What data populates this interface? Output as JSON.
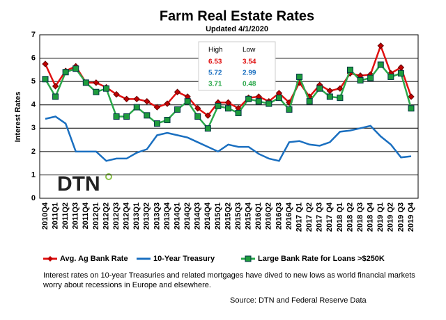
{
  "chart_data": {
    "type": "line",
    "title": "Farm Real Estate Rates",
    "subtitle": "Updated 4/1/2020",
    "y_label": "Interest Rates",
    "logo": "DTN",
    "categories": [
      "2010Q4",
      "2011Q1",
      "2011Q2",
      "2011Q3",
      "2011Q4",
      "2012Q1",
      "2012Q2",
      "2012Q3",
      "2012Q4",
      "2013Q1",
      "2013Q2",
      "2013Q3",
      "2013Q4",
      "2014Q1",
      "2014Q2",
      "2014Q3",
      "2014Q4",
      "2015Q1",
      "2015Q2",
      "2015Q3",
      "2015Q4",
      "2016Q1",
      "2016Q2",
      "2016Q3",
      "2016Q4",
      "2017 Q1",
      "2017 Q2",
      "2017 Q3",
      "2017 Q4",
      "2018 Q1",
      "2018 Q2",
      "2018 Q3",
      "2018 Q4",
      "2019 Q1",
      "2019 Q2",
      "2019 Q3",
      "2019 Q4"
    ],
    "series": [
      {
        "name": "Avg. Ag Bank Rate",
        "color": "#e01010",
        "marker": "diamond",
        "values": [
          5.75,
          4.8,
          5.45,
          5.65,
          4.95,
          4.95,
          4.75,
          4.45,
          4.25,
          4.25,
          4.15,
          3.9,
          4.05,
          4.55,
          4.35,
          3.85,
          3.54,
          4.1,
          4.1,
          3.85,
          4.3,
          4.35,
          4.15,
          4.5,
          4.1,
          4.95,
          4.35,
          4.85,
          4.6,
          4.7,
          5.35,
          5.25,
          5.3,
          6.53,
          5.35,
          5.6,
          4.35
        ]
      },
      {
        "name": "10-Year Treasury",
        "color": "#1a6fc0",
        "marker": "none",
        "values": [
          3.4,
          3.5,
          3.2,
          2.0,
          2.0,
          2.0,
          1.6,
          1.7,
          1.7,
          1.95,
          2.1,
          2.7,
          2.8,
          2.7,
          2.6,
          2.4,
          2.2,
          2.0,
          2.3,
          2.2,
          2.2,
          1.9,
          1.7,
          1.6,
          2.4,
          2.45,
          2.3,
          2.25,
          2.4,
          2.85,
          2.9,
          3.0,
          3.1,
          2.65,
          2.3,
          1.75,
          1.8
        ]
      },
      {
        "name": "Large Bank Rate for Loans >$250K",
        "color": "#2aa84a",
        "marker": "square",
        "values": [
          5.1,
          4.35,
          5.4,
          5.55,
          4.95,
          4.55,
          4.7,
          3.5,
          3.5,
          3.9,
          3.55,
          3.2,
          3.35,
          3.8,
          4.15,
          3.5,
          2.99,
          3.95,
          3.85,
          3.65,
          4.25,
          4.15,
          4.05,
          4.3,
          3.8,
          5.2,
          4.15,
          4.7,
          4.35,
          4.3,
          5.5,
          5.05,
          5.15,
          5.72,
          5.2,
          5.35,
          3.85
        ]
      }
    ],
    "ylim": [
      0,
      7
    ],
    "yticks": [
      0,
      1,
      2,
      3,
      4,
      5,
      6,
      7
    ],
    "grid": true,
    "stats": {
      "headers": [
        "High",
        "Low"
      ],
      "rows": [
        [
          6.53,
          3.54
        ],
        [
          5.72,
          2.99
        ],
        [
          3.71,
          0.48
        ]
      ]
    },
    "caption": "Interest rates on 10-year Treasuries and related mortgages have dived to new lows as world financial markets worry about recessions in Europe and elsewhere.",
    "source": "Source: DTN  and Federal Reserve Data"
  }
}
